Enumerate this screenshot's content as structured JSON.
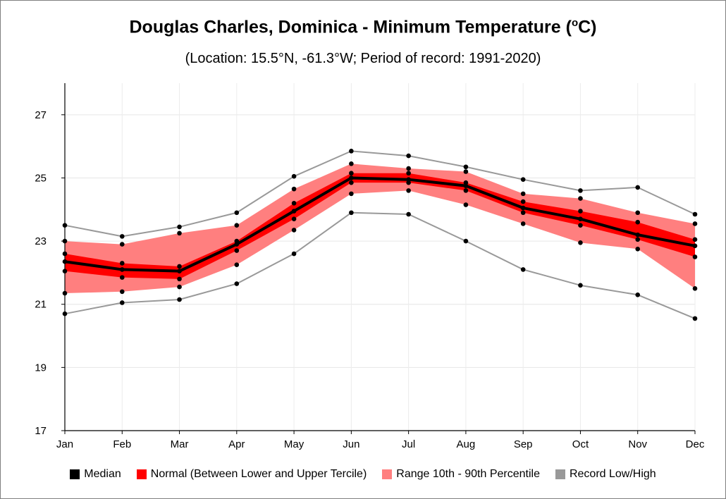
{
  "chart_data": {
    "type": "line",
    "title_main": "Douglas Charles, Dominica - Minimum Temperature (",
    "title_sup": "o",
    "title_end": "C)",
    "subtitle": "(Location: 15.5°N, -61.3°W; Period of record: 1991-2020)",
    "categories": [
      "Jan",
      "Feb",
      "Mar",
      "Apr",
      "May",
      "Jun",
      "Jul",
      "Aug",
      "Sep",
      "Oct",
      "Nov",
      "Dec"
    ],
    "ylim": [
      17,
      28
    ],
    "yticks": [
      17,
      19,
      21,
      23,
      25,
      27
    ],
    "grid": true,
    "legend_position": "bottom",
    "series": [
      {
        "name": "Record Low/High",
        "color": "#999999",
        "role": "record_high",
        "values": [
          23.5,
          23.15,
          23.45,
          23.9,
          25.05,
          25.85,
          25.7,
          25.35,
          24.95,
          24.6,
          24.7,
          23.85
        ]
      },
      {
        "name": "Record Low/High",
        "color": "#999999",
        "role": "record_low",
        "values": [
          20.7,
          21.05,
          21.15,
          21.65,
          22.6,
          23.9,
          23.85,
          23.0,
          22.1,
          21.6,
          21.3,
          20.55
        ]
      },
      {
        "name": "Range 10th - 90th Percentile",
        "color": "#ff7f7f",
        "role": "p90",
        "values": [
          23.0,
          22.9,
          23.25,
          23.5,
          24.65,
          25.45,
          25.3,
          25.2,
          24.5,
          24.35,
          23.9,
          23.55
        ]
      },
      {
        "name": "Range 10th - 90th Percentile",
        "color": "#ff7f7f",
        "role": "p10",
        "values": [
          21.35,
          21.4,
          21.55,
          22.25,
          23.35,
          24.5,
          24.6,
          24.15,
          23.55,
          22.95,
          22.75,
          21.5
        ]
      },
      {
        "name": "Normal (Between Lower and Upper Tercile)",
        "color": "#ff0000",
        "role": "upper_tercile",
        "values": [
          22.6,
          22.3,
          22.2,
          23.0,
          24.2,
          25.15,
          25.15,
          24.85,
          24.25,
          23.95,
          23.6,
          23.05
        ]
      },
      {
        "name": "Normal (Between Lower and Upper Tercile)",
        "color": "#ff0000",
        "role": "lower_tercile",
        "values": [
          22.05,
          21.85,
          21.8,
          22.7,
          23.7,
          24.85,
          24.85,
          24.6,
          23.9,
          23.5,
          23.05,
          22.5
        ]
      },
      {
        "name": "Median",
        "color": "#000000",
        "role": "median",
        "values": [
          22.35,
          22.1,
          22.05,
          22.9,
          23.95,
          25.0,
          24.95,
          24.75,
          24.05,
          23.7,
          23.2,
          22.85
        ]
      }
    ],
    "legend": [
      {
        "label": "Median",
        "color": "#000000"
      },
      {
        "label": "Normal (Between Lower and Upper Tercile)",
        "color": "#ff0000"
      },
      {
        "label": "Range 10th - 90th Percentile",
        "color": "#ff7f7f"
      },
      {
        "label": "Record Low/High",
        "color": "#999999"
      }
    ]
  }
}
